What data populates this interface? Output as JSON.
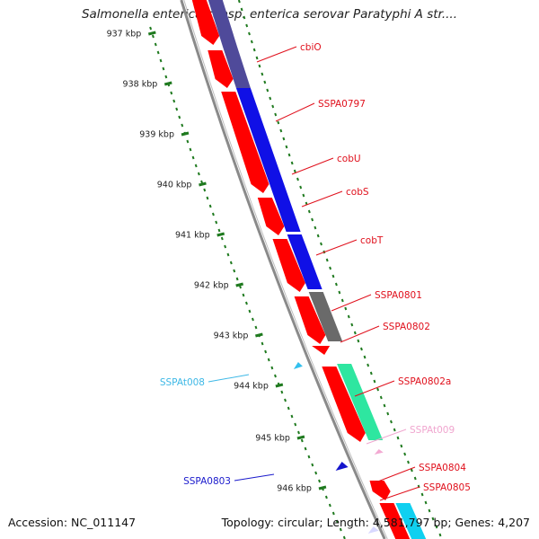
{
  "title": "Salmonella enterica subsp. enterica serovar Paratyphi A str....",
  "accession": "Accession: NC_011147",
  "topology": "Topology: circular; Length: 4,581,797 bp; Genes: 4,207",
  "ticks": [
    {
      "label": "937 kbp"
    },
    {
      "label": "938 kbp"
    },
    {
      "label": "939 kbp"
    },
    {
      "label": "940 kbp"
    },
    {
      "label": "941 kbp"
    },
    {
      "label": "942 kbp"
    },
    {
      "label": "943 kbp"
    },
    {
      "label": "944 kbp"
    },
    {
      "label": "945 kbp"
    },
    {
      "label": "946 kbp"
    }
  ],
  "genes": [
    {
      "label": "cbiO",
      "color": "#e0101c"
    },
    {
      "label": "SSPA0797",
      "color": "#e0101c"
    },
    {
      "label": "cobU",
      "color": "#e0101c"
    },
    {
      "label": "cobS",
      "color": "#e0101c"
    },
    {
      "label": "cobT",
      "color": "#e0101c"
    },
    {
      "label": "SSPA0801",
      "color": "#e0101c"
    },
    {
      "label": "SSPA0802",
      "color": "#e0101c"
    },
    {
      "label": "SSPAt008",
      "color": "#3db8e6"
    },
    {
      "label": "SSPA0802a",
      "color": "#e0101c"
    },
    {
      "label": "SSPAt009",
      "color": "#f0a6cf"
    },
    {
      "label": "SSPA0804",
      "color": "#e0101c"
    },
    {
      "label": "SSPA0803",
      "color": "#1a1acc"
    },
    {
      "label": "SSPA0805",
      "color": "#e0101c"
    }
  ],
  "colors": {
    "cds": "#ff0000",
    "trna": "#33c0ee",
    "trna_pink": "#f3a9d2",
    "cog_purple": "#4f4a9a",
    "cog_blue": "#1010e6",
    "cog_grey": "#6a6a6a",
    "cog_green": "#2ee6a0",
    "cog_cyan": "#10d0f0",
    "reverse_blue": "#1414cc",
    "tick_green": "#1f7a1f",
    "backbone": "#8a8a8a"
  }
}
